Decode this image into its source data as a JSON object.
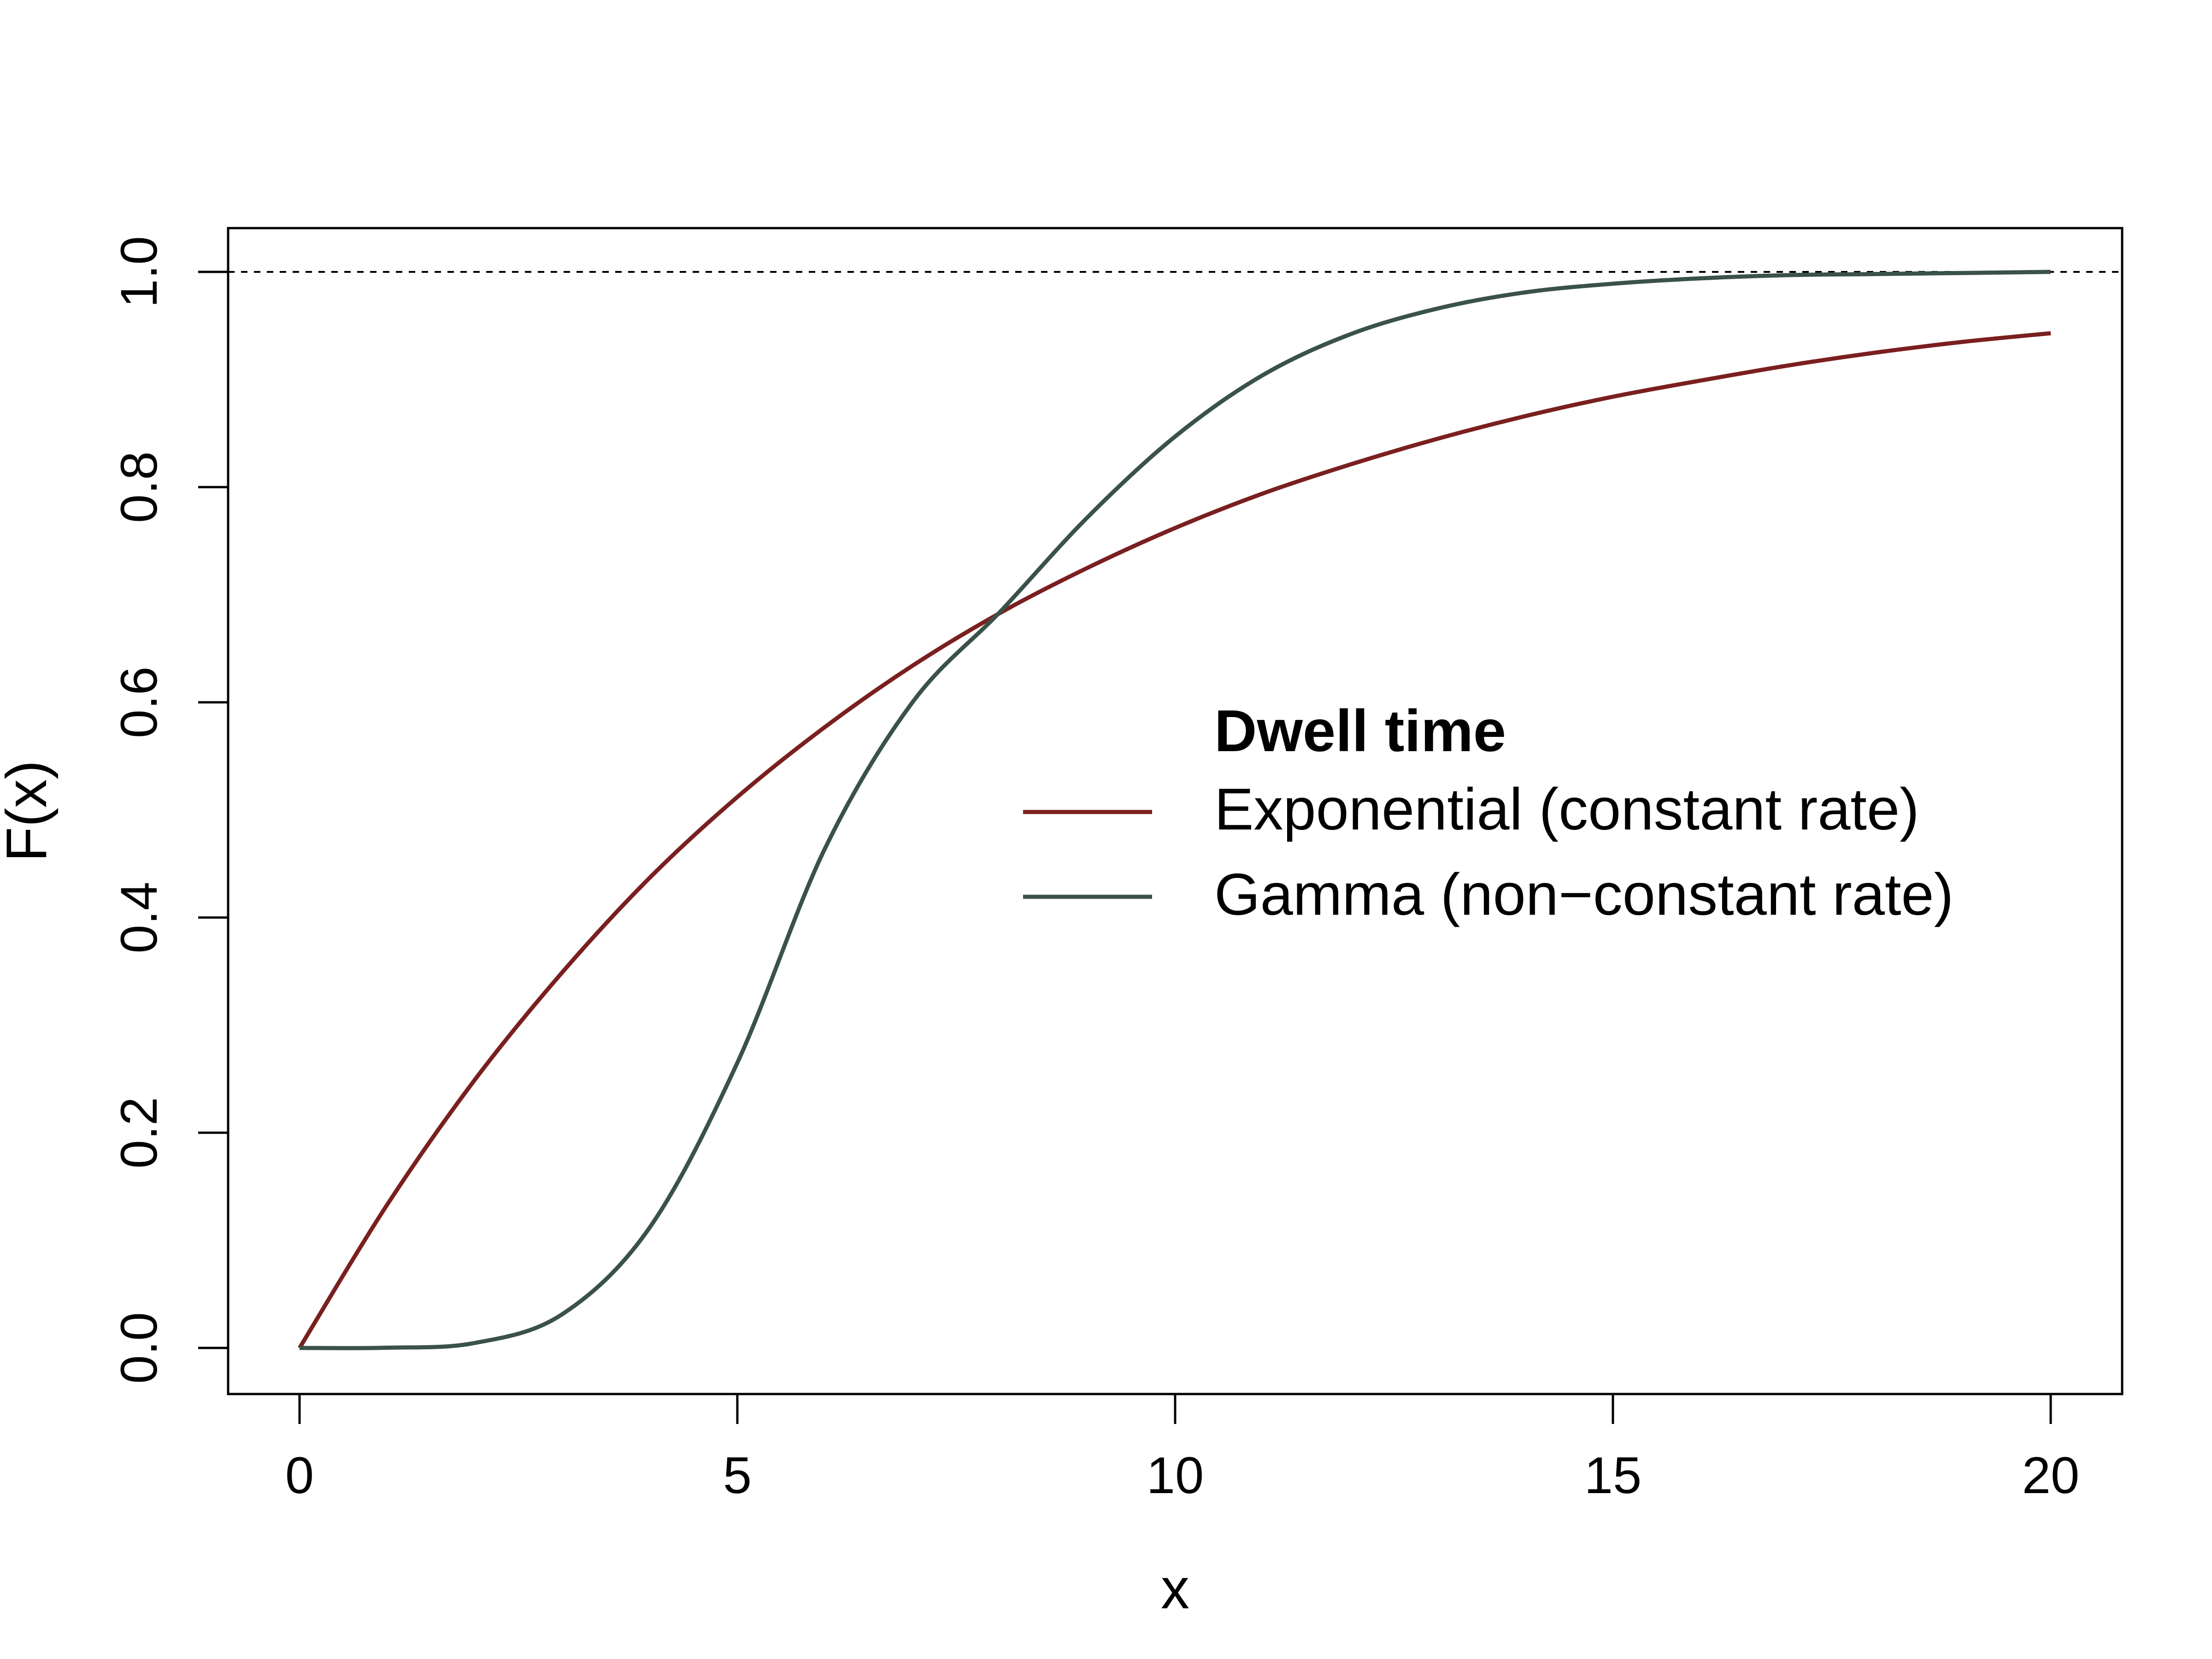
{
  "chart_data": {
    "type": "line",
    "title": "",
    "xlabel": "x",
    "ylabel": "F(x)",
    "xlim": [
      0,
      20
    ],
    "ylim": [
      0,
      1
    ],
    "x_ticks": [
      "0",
      "5",
      "10",
      "15",
      "20"
    ],
    "y_ticks": [
      "0.0",
      "0.2",
      "0.4",
      "0.6",
      "0.8",
      "1.0"
    ],
    "reference_line": {
      "y": 1.0,
      "style": "dashed",
      "color": "#000000"
    },
    "grid": false,
    "legend": {
      "title": "Dwell time",
      "placement": "center-right"
    },
    "x": [
      0,
      1,
      2,
      3,
      4,
      5,
      6,
      7,
      8,
      9,
      10,
      11,
      12,
      13,
      14,
      15,
      16,
      17,
      18,
      19,
      20
    ],
    "series": [
      {
        "name": "Exponential (constant rate)",
        "color": "#7a1f1f",
        "values": [
          0.0,
          0.133,
          0.249,
          0.349,
          0.437,
          0.512,
          0.577,
          0.634,
          0.683,
          0.725,
          0.762,
          0.794,
          0.821,
          0.845,
          0.866,
          0.884,
          0.899,
          0.913,
          0.925,
          0.935,
          0.943
        ]
      },
      {
        "name": "Gamma (non−constant rate)",
        "color": "#3a5249",
        "values": [
          0.0,
          0.0002,
          0.0046,
          0.0313,
          0.112,
          0.265,
          0.464,
          0.6,
          0.684,
          0.772,
          0.847,
          0.904,
          0.942,
          0.966,
          0.981,
          0.989,
          0.994,
          0.997,
          0.998,
          0.999,
          1.0
        ]
      }
    ]
  }
}
